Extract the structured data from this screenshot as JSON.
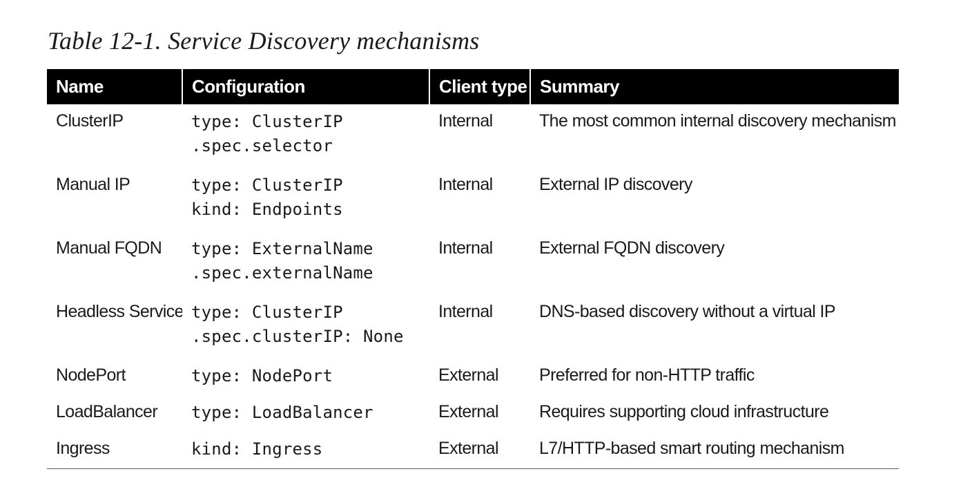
{
  "caption": "Table 12-1. Service Discovery mechanisms",
  "table": {
    "headers": [
      "Name",
      "Configuration",
      "Client type",
      "Summary"
    ],
    "rows": [
      {
        "name": "ClusterIP",
        "config": [
          "type: ClusterIP",
          ".spec.selector"
        ],
        "client": "Internal",
        "summary": "The most common internal discovery mechanism"
      },
      {
        "name": "Manual IP",
        "config": [
          "type: ClusterIP",
          "kind: Endpoints"
        ],
        "client": "Internal",
        "summary": "External IP discovery"
      },
      {
        "name": "Manual FQDN",
        "config": [
          "type: ExternalName",
          ".spec.externalName"
        ],
        "client": "Internal",
        "summary": "External FQDN discovery"
      },
      {
        "name": "Headless Service",
        "config": [
          "type: ClusterIP",
          ".spec.clusterIP: None"
        ],
        "client": "Internal",
        "summary": "DNS-based discovery without a virtual IP"
      },
      {
        "name": "NodePort",
        "config": [
          "type: NodePort"
        ],
        "client": "External",
        "summary": "Preferred for non-HTTP traffic"
      },
      {
        "name": "LoadBalancer",
        "config": [
          "type: LoadBalancer"
        ],
        "client": "External",
        "summary": "Requires supporting cloud infrastructure"
      },
      {
        "name": "Ingress",
        "config": [
          "kind: Ingress"
        ],
        "client": "External",
        "summary": "L7/HTTP-based smart routing mechanism"
      }
    ]
  },
  "colors": {
    "header_bg": "#000000",
    "header_text": "#ffffff",
    "body_text": "#1a1a1a"
  }
}
